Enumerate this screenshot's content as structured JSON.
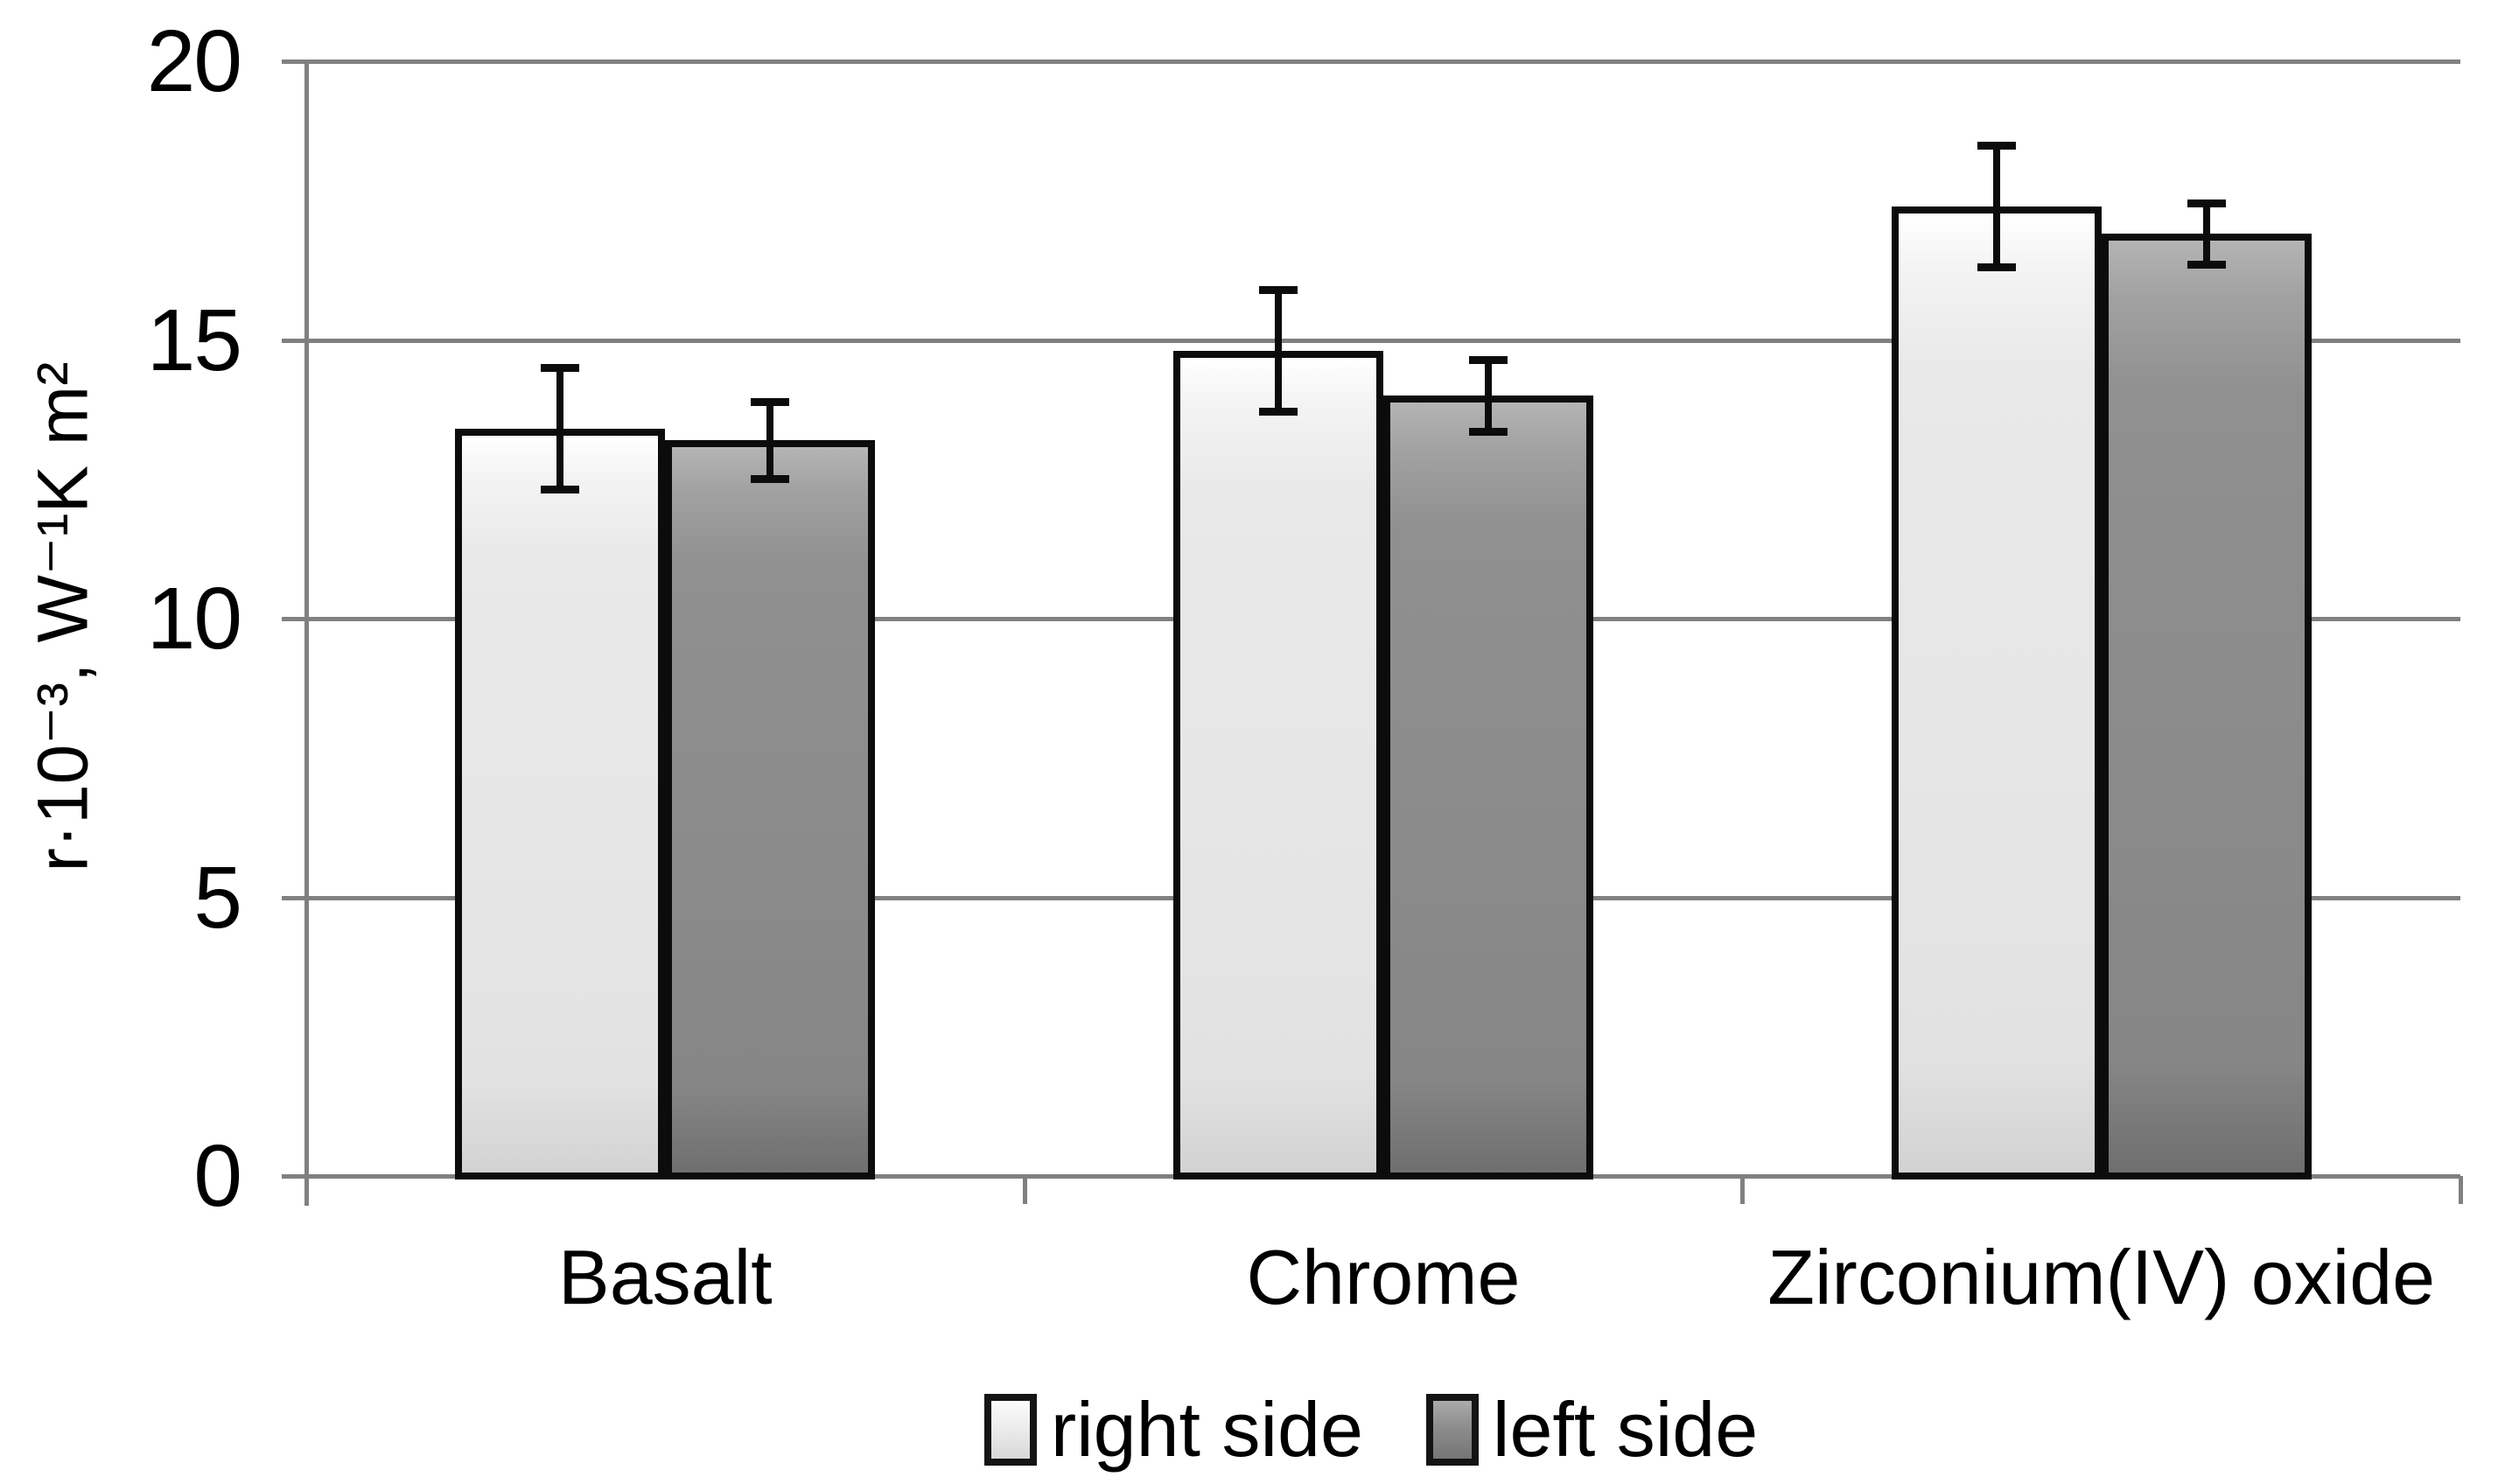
{
  "page": {
    "background": "#ffffff"
  },
  "chart_data": {
    "type": "bar",
    "title": "",
    "categories": [
      "Basalt",
      "Chrome",
      "Zirconium(IV) oxide"
    ],
    "series": [
      {
        "name": "right side",
        "values": [
          13.4,
          14.8,
          17.4
        ],
        "errors": [
          1.1,
          1.1,
          1.1
        ],
        "fill": "#e8e8e8"
      },
      {
        "name": "left side",
        "values": [
          13.2,
          14.0,
          16.9
        ],
        "errors": [
          0.7,
          0.65,
          0.55
        ],
        "fill": "#8c8c8c"
      }
    ],
    "ylabel": "r·10⁻³, W⁻¹K m²",
    "xlabel": "",
    "ylim": [
      0,
      20
    ],
    "yticks": [
      0,
      5,
      10,
      15,
      20
    ],
    "grid": true,
    "gridline_color": "#808080",
    "bar_border_color": "#0c0c0c",
    "error_bar_color": "#0c0c0c",
    "legend_position": "bottom",
    "error_bars": true
  }
}
